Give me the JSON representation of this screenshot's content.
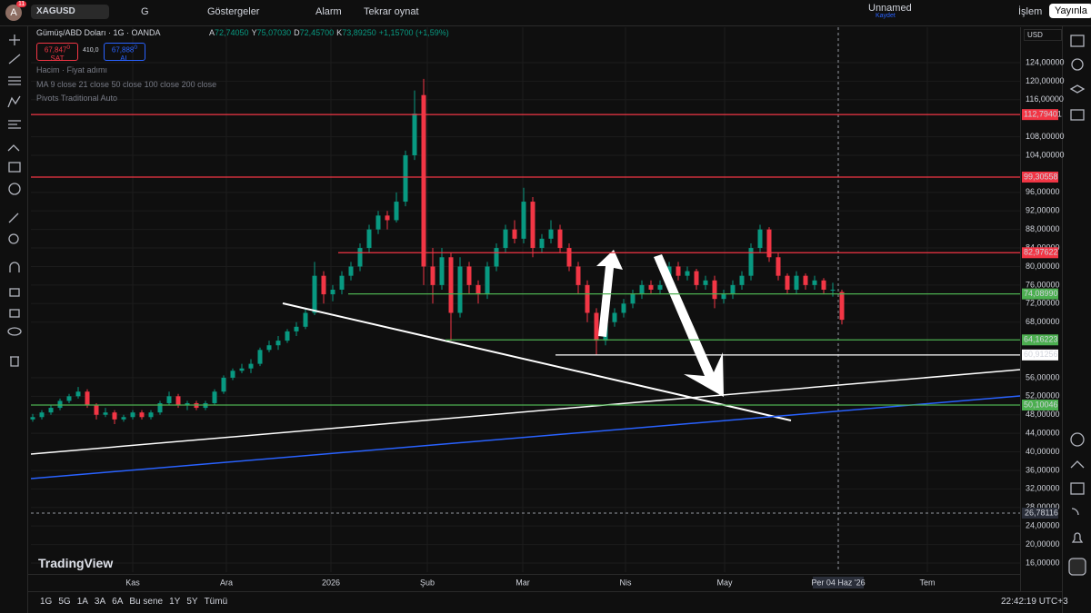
{
  "toolbar": {
    "avatar": "A",
    "badge": "11",
    "symbol": "XAGUSD",
    "interval": "G",
    "indicators": "Göstergeler",
    "alarm": "Alarm",
    "replay": "Tekrar oynat",
    "layout_name": "Unnamed",
    "save": "Kaydet",
    "trade": "İşlem",
    "publish": "Yayınla"
  },
  "legend": {
    "title": "Gümüş/ABD Doları · 1G · OANDA",
    "ohlc": [
      {
        "label": "A",
        "value": "72,74050"
      },
      {
        "label": "Y",
        "value": "75,07030"
      },
      {
        "label": "D",
        "value": "72,45700"
      },
      {
        "label": "K",
        "value": "73,89250"
      }
    ],
    "change": "+1,15700 (+1,59%)",
    "sell": {
      "price": "67,847",
      "sup": "0",
      "label": "SAT"
    },
    "spread": "410,0",
    "buy": {
      "price": "67,888",
      "sup": "0",
      "label": "AL"
    },
    "indicators": [
      "Hacim · Fiyat adımı",
      "MA 9 close 21 close 50 close 100 close 200 close",
      "Pivots Traditional Auto"
    ]
  },
  "branding": "TradingView",
  "chart_data": {
    "type": "candlestick",
    "currency": "USD",
    "up_color": "#089981",
    "down_color": "#f23645",
    "ylim": [
      14.04,
      131.64
    ],
    "xlim": [
      -0.2,
      108.6
    ],
    "yticks": [
      {
        "value": 124,
        "label": "124,00000"
      },
      {
        "value": 120,
        "label": "120,00000"
      },
      {
        "value": 116,
        "label": "116,00000"
      },
      {
        "value": 108,
        "label": "108,00000"
      },
      {
        "value": 104,
        "label": "104,00000"
      },
      {
        "value": 96,
        "label": "96,00000"
      },
      {
        "value": 92,
        "label": "92,00000"
      },
      {
        "value": 88,
        "label": "88,00000"
      },
      {
        "value": 84,
        "label": "84,00000"
      },
      {
        "value": 80,
        "label": "80,00000"
      },
      {
        "value": 76,
        "label": "76,00000"
      },
      {
        "value": 72,
        "label": "72,00000"
      },
      {
        "value": 68,
        "label": "68,00000"
      },
      {
        "value": 56,
        "label": "56,00000"
      },
      {
        "value": 52,
        "label": "52,00000"
      },
      {
        "value": 48,
        "label": "48,00000"
      },
      {
        "value": 44,
        "label": "44,00000"
      },
      {
        "value": 40,
        "label": "40,00000"
      },
      {
        "value": 36,
        "label": "36,00000"
      },
      {
        "value": 32,
        "label": "32,00000"
      },
      {
        "value": 28,
        "label": "28,00000"
      },
      {
        "value": 24,
        "label": "24,00000"
      },
      {
        "value": 20,
        "label": "20,00000"
      },
      {
        "value": 16,
        "label": "16,00000"
      }
    ],
    "xticks": [
      {
        "value": 11,
        "label": "Kas"
      },
      {
        "value": 21.3,
        "label": "Ara"
      },
      {
        "value": 32.8,
        "label": "2026"
      },
      {
        "value": 43.4,
        "label": "Şub"
      },
      {
        "value": 53.9,
        "label": "Mar"
      },
      {
        "value": 65.2,
        "label": "Nis"
      },
      {
        "value": 76.1,
        "label": "May"
      },
      {
        "value": 98.4,
        "label": "Tem"
      }
    ],
    "crosshair": {
      "x": 88.6,
      "x_label": "Per 04 Haz '26",
      "y": 26.78116,
      "y_label": "26,78116"
    },
    "levels": [
      {
        "value": 112.79401,
        "label": "112,79401",
        "color": "#f23645",
        "from": -0.2
      },
      {
        "value": 99.30558,
        "label": "99,30558",
        "color": "#f23645",
        "from": -0.2
      },
      {
        "value": 82.97622,
        "label": "82,97622",
        "color": "#f23645",
        "from": 33.6
      },
      {
        "value": 74.0899,
        "label": "74,08990",
        "color": "#4caf50",
        "from": 34.7
      },
      {
        "value": 64.16223,
        "label": "64,16223",
        "color": "#4caf50",
        "from": 45.4
      },
      {
        "value": 60.91256,
        "label": "60,91256",
        "color": "#ffffff",
        "from": 57.5
      },
      {
        "value": 50.10046,
        "label": "50,10046",
        "color": "#4caf50",
        "from": -0.2
      }
    ],
    "candles": [
      [
        47,
        48.2,
        46.5,
        47.5
      ],
      [
        47.5,
        49,
        47,
        48.5
      ],
      [
        48.5,
        50,
        48,
        49.5
      ],
      [
        49.5,
        51.5,
        49,
        51
      ],
      [
        51,
        52.5,
        50.5,
        52
      ],
      [
        52,
        54,
        51.5,
        53
      ],
      [
        53,
        53.5,
        49.5,
        50
      ],
      [
        50,
        50.5,
        47,
        48
      ],
      [
        48,
        49.5,
        47.5,
        48.5
      ],
      [
        48.5,
        49,
        46,
        47
      ],
      [
        47,
        48,
        46.5,
        47.5
      ],
      [
        47.5,
        49,
        47,
        48.5
      ],
      [
        48.5,
        49,
        47,
        47.5
      ],
      [
        47.5,
        49,
        47,
        48.5
      ],
      [
        48.5,
        51,
        48,
        50.5
      ],
      [
        50.5,
        53,
        50,
        52
      ],
      [
        52,
        52.5,
        49.5,
        50
      ],
      [
        50,
        51,
        49,
        50.5
      ],
      [
        50.5,
        51,
        49,
        49.5
      ],
      [
        49.5,
        51,
        49,
        50.5
      ],
      [
        50.5,
        53.5,
        50,
        53
      ],
      [
        53,
        56.5,
        52.5,
        56
      ],
      [
        56,
        58,
        55.5,
        57.5
      ],
      [
        57.5,
        59,
        57,
        58
      ],
      [
        58,
        60,
        57,
        59
      ],
      [
        59,
        62.5,
        58.5,
        62
      ],
      [
        62,
        64,
        61.5,
        63
      ],
      [
        63,
        65,
        62,
        64
      ],
      [
        64,
        66.5,
        63.5,
        66
      ],
      [
        66,
        68,
        65,
        67
      ],
      [
        67,
        71,
        66.5,
        70
      ],
      [
        70,
        81,
        69.5,
        78
      ],
      [
        78,
        79,
        72,
        74
      ],
      [
        74,
        76,
        72.5,
        75
      ],
      [
        75,
        79,
        74,
        78
      ],
      [
        78,
        81,
        77,
        80
      ],
      [
        80,
        85,
        79,
        84
      ],
      [
        84,
        89,
        83,
        88
      ],
      [
        88,
        92,
        87,
        91
      ],
      [
        91,
        92,
        88,
        90
      ],
      [
        90,
        96,
        89.5,
        94
      ],
      [
        94,
        105,
        93,
        104
      ],
      [
        104,
        118,
        103,
        113
      ],
      [
        117,
        120.5,
        76,
        80
      ],
      [
        80,
        84,
        72,
        76
      ],
      [
        76,
        84,
        75,
        82
      ],
      [
        82,
        83,
        64,
        70
      ],
      [
        70,
        82,
        69,
        80
      ],
      [
        80,
        81,
        74,
        76
      ],
      [
        76,
        77,
        72,
        74
      ],
      [
        74,
        81,
        73,
        80
      ],
      [
        80,
        85,
        79,
        84
      ],
      [
        84,
        89,
        83,
        88
      ],
      [
        88,
        90,
        85,
        86
      ],
      [
        86,
        97,
        85,
        94
      ],
      [
        94,
        95,
        82,
        84
      ],
      [
        84,
        87,
        83,
        86
      ],
      [
        86,
        90,
        85,
        88
      ],
      [
        88,
        89,
        83,
        84
      ],
      [
        84,
        85,
        79,
        80
      ],
      [
        80,
        81,
        74,
        76
      ],
      [
        76,
        77,
        68,
        70
      ],
      [
        70,
        71,
        61,
        64
      ],
      [
        64,
        69,
        63,
        68
      ],
      [
        68,
        71,
        67,
        70
      ],
      [
        70,
        73,
        69,
        72
      ],
      [
        72,
        75,
        71,
        74
      ],
      [
        74,
        77,
        73,
        76
      ],
      [
        76,
        77,
        74,
        75
      ],
      [
        75,
        77,
        74,
        76
      ],
      [
        76,
        81,
        75,
        80
      ],
      [
        80,
        81,
        77,
        78
      ],
      [
        78,
        80,
        77,
        79
      ],
      [
        79,
        79.5,
        75,
        76
      ],
      [
        76,
        78,
        75,
        77
      ],
      [
        77,
        78,
        71,
        73
      ],
      [
        73,
        75,
        72,
        74
      ],
      [
        74,
        77,
        73,
        76
      ],
      [
        76,
        79,
        75,
        78
      ],
      [
        78,
        85,
        77,
        84
      ],
      [
        84,
        89,
        83,
        88
      ],
      [
        88,
        88.5,
        81,
        82
      ],
      [
        82,
        83,
        77,
        78
      ],
      [
        78,
        78.5,
        74,
        75
      ],
      [
        75,
        79,
        74,
        78
      ],
      [
        78,
        78.5,
        75,
        76
      ],
      [
        76,
        78,
        75,
        77
      ],
      [
        77,
        77.5,
        74,
        75
      ],
      [
        75,
        76.5,
        73.5,
        75
      ],
      [
        74.5,
        75,
        67.5,
        68.5
      ]
    ]
  },
  "bottom_bar": {
    "ranges": [
      "1G",
      "5G",
      "1A",
      "3A",
      "6A",
      "Bu sene",
      "1Y",
      "5Y",
      "Tümü"
    ],
    "clock": "22:42:19 UTC+3"
  }
}
